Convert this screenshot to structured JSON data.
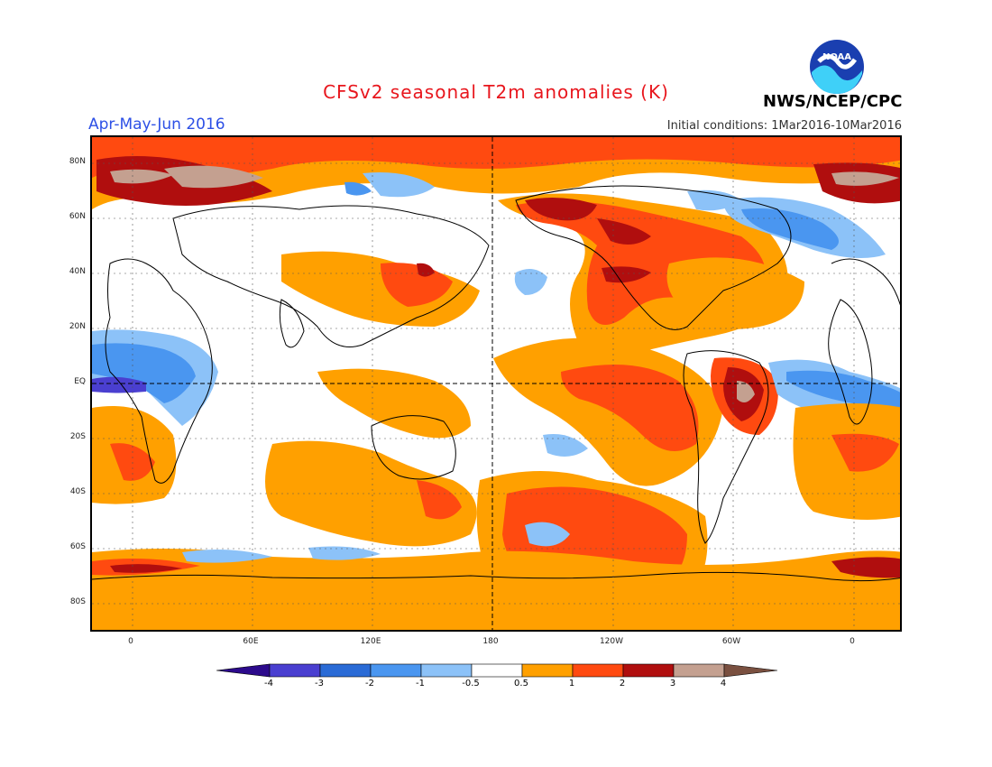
{
  "header": {
    "title": "CFSv2 seasonal T2m anomalies (K)",
    "season": "Apr-May-Jun 2016",
    "initial_conditions": "Initial conditions: 1Mar2016-10Mar2016",
    "agency": "NWS/NCEP/CPC",
    "logo_text": "NOAA"
  },
  "map": {
    "lat_labels": [
      "80N",
      "60N",
      "40N",
      "20N",
      "EQ",
      "20S",
      "40S",
      "60S",
      "80S"
    ],
    "lon_labels": [
      "0",
      "60E",
      "120E",
      "180",
      "120W",
      "60W",
      "0"
    ]
  },
  "legend": {
    "labels": [
      "-4",
      "-3",
      "-2",
      "-1",
      "-0.5",
      "0.5",
      "1",
      "2",
      "3",
      "4"
    ],
    "colors": [
      "#2c0a8c",
      "#4a3fd0",
      "#2a6bd6",
      "#4a96f0",
      "#8cc2f8",
      "#ffffff",
      "#ffa000",
      "#ff4a10",
      "#b00e0e",
      "#c4a090",
      "#7a5040"
    ]
  },
  "colors": {
    "title": "#e8161d",
    "season": "#2d50e6"
  }
}
